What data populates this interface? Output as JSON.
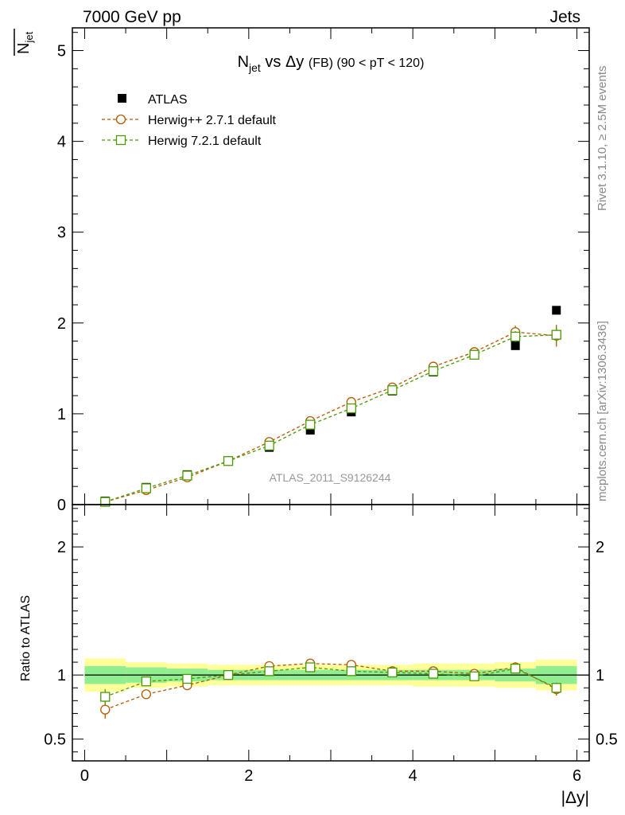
{
  "header": {
    "left": "7000 GeV pp",
    "right": "Jets"
  },
  "side_labels": {
    "rivet": "Rivet 3.1.10, ≥ 2.5M events",
    "mcplots": "mcplots.cern.ch [arXiv:1306.3436]"
  },
  "watermark": "ATLAS_2011_S9126244",
  "colors": {
    "atlas": "#000000",
    "herwigpp": "#b35900",
    "herwig7": "#4c9900",
    "band_inner": "#90ee90",
    "band_outer": "#ffff99",
    "watermark": "#999999",
    "side_labels": "#888888"
  },
  "chart_data": [
    {
      "type": "scatter",
      "panel": "main",
      "title": "N_jet vs Δy (FB) (90 < pT < 120)",
      "title_parts": {
        "main": "N",
        "sub": "jet",
        "rest": " vs Δy ",
        "small": "(FB) (90 < pT < 120)"
      },
      "ylabel": {
        "main": "N",
        "sub": "jet",
        "overline": true
      },
      "xlabel": "|Δy|",
      "xlim": [
        -0.15,
        6.15
      ],
      "ylim": [
        0,
        5.25
      ],
      "y_ticks": [
        0,
        1,
        2,
        3,
        4,
        5
      ],
      "y_tick_labels": [
        "0",
        "1",
        "2",
        "3",
        "4",
        "5"
      ],
      "legend_position": "top-left",
      "x": [
        0.25,
        0.75,
        1.25,
        1.75,
        2.25,
        2.75,
        3.25,
        3.75,
        4.25,
        4.75,
        5.25,
        5.75
      ],
      "series": [
        {
          "name": "ATLAS",
          "marker": "filled-square",
          "values": [
            0.04,
            0.19,
            0.33,
            0.48,
            0.63,
            0.82,
            1.02,
            1.25,
            1.46,
            1.66,
            1.75,
            2.14
          ]
        },
        {
          "name": "Herwig++ 2.7.1 default",
          "marker": "open-circle",
          "line": "dashed",
          "values": [
            0.03,
            0.16,
            0.3,
            0.48,
            0.69,
            0.92,
            1.13,
            1.29,
            1.52,
            1.68,
            1.9,
            1.86
          ],
          "errors": [
            0.0,
            0.01,
            0.01,
            0.01,
            0.01,
            0.01,
            0.01,
            0.01,
            0.02,
            0.03,
            0.07,
            0.12
          ]
        },
        {
          "name": "Herwig 7.2.1 default",
          "marker": "open-square",
          "line": "dashed",
          "values": [
            0.03,
            0.18,
            0.32,
            0.48,
            0.65,
            0.88,
            1.06,
            1.26,
            1.47,
            1.65,
            1.85,
            1.87
          ],
          "errors": [
            0.0,
            0.01,
            0.01,
            0.01,
            0.01,
            0.01,
            0.01,
            0.01,
            0.02,
            0.03,
            0.06,
            0.09
          ]
        }
      ]
    },
    {
      "type": "line",
      "panel": "ratio",
      "ylabel": "Ratio to ATLAS",
      "xlabel": "|Δy|",
      "xlim": [
        -0.15,
        6.15
      ],
      "ylim": [
        0.33,
        2.33
      ],
      "x_ticks": [
        0,
        2,
        4,
        6
      ],
      "x_tick_labels": [
        "0",
        "2",
        "4",
        "6"
      ],
      "y_ticks": [
        0.5,
        1,
        2
      ],
      "y_tick_labels": [
        "0.5",
        "1",
        "2"
      ],
      "reference_line": 1.0,
      "bin_edges": [
        0,
        0.5,
        1.0,
        1.5,
        2.0,
        2.5,
        3.0,
        3.5,
        4.0,
        4.5,
        5.0,
        5.5,
        6.0
      ],
      "band_inner_halfwidth": [
        0.07,
        0.06,
        0.05,
        0.04,
        0.04,
        0.04,
        0.04,
        0.04,
        0.04,
        0.04,
        0.05,
        0.07
      ],
      "band_outer_halfwidth": [
        0.13,
        0.1,
        0.09,
        0.08,
        0.08,
        0.08,
        0.08,
        0.08,
        0.09,
        0.09,
        0.1,
        0.12
      ],
      "x": [
        0.25,
        0.75,
        1.25,
        1.75,
        2.25,
        2.75,
        3.25,
        3.75,
        4.25,
        4.75,
        5.25,
        5.75
      ],
      "series": [
        {
          "name": "Herwig++ 2.7.1 default",
          "marker": "open-circle",
          "values": [
            0.73,
            0.85,
            0.92,
            1.0,
            1.07,
            1.09,
            1.08,
            1.03,
            1.03,
            1.01,
            1.06,
            0.89
          ],
          "errors": [
            0.07,
            0.03,
            0.01,
            0.01,
            0.01,
            0.01,
            0.01,
            0.01,
            0.01,
            0.02,
            0.04,
            0.05
          ]
        },
        {
          "name": "Herwig 7.2.1 default",
          "marker": "open-square",
          "values": [
            0.83,
            0.95,
            0.97,
            1.0,
            1.03,
            1.06,
            1.03,
            1.02,
            1.01,
            0.99,
            1.05,
            0.9
          ],
          "errors": [
            0.06,
            0.02,
            0.01,
            0.01,
            0.01,
            0.01,
            0.01,
            0.01,
            0.01,
            0.02,
            0.03,
            0.04
          ]
        }
      ]
    }
  ]
}
